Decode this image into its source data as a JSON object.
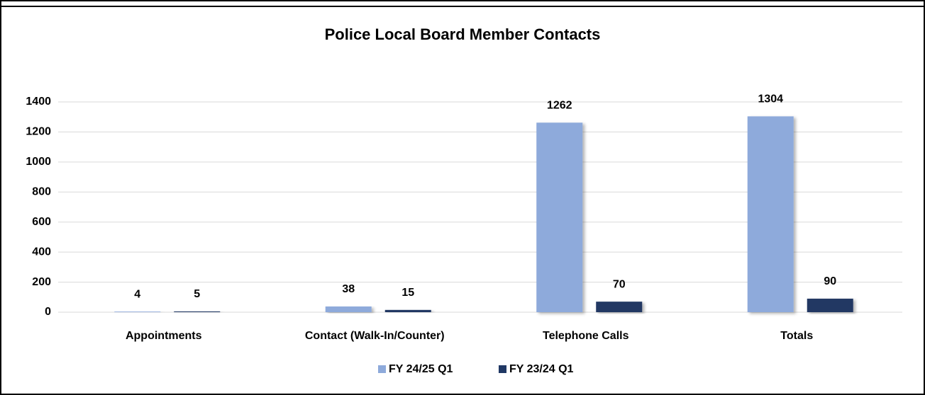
{
  "chart_data": {
    "type": "bar",
    "title": "Police Local Board Member Contacts",
    "categories": [
      "Appointments",
      "Contact (Walk-In/Counter)",
      "Telephone Calls",
      "Totals"
    ],
    "series": [
      {
        "name": "FY 24/25 Q1",
        "color": "#8eaadb",
        "values": [
          4,
          38,
          1262,
          1304
        ]
      },
      {
        "name": "FY 23/24 Q1",
        "color": "#203864",
        "values": [
          5,
          15,
          70,
          90
        ]
      }
    ],
    "ylim": [
      0,
      1400
    ],
    "yticks": [
      0,
      200,
      400,
      600,
      800,
      1000,
      1200,
      1400
    ],
    "grid": true,
    "legend": "bottom"
  }
}
